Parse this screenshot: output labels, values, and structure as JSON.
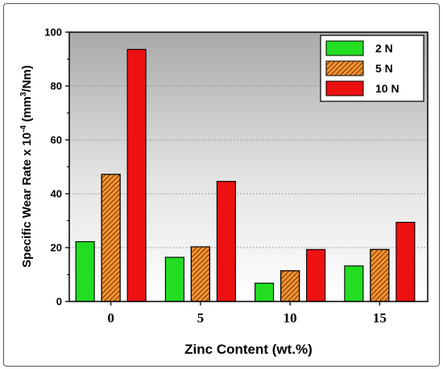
{
  "chart_data": {
    "type": "bar",
    "title": "",
    "xlabel": "Zinc Content (wt.%)",
    "ylabel": {
      "prefix": "Specific Wear Rate x 10",
      "exp1": "-4",
      "middle": " (mm",
      "exp2": "3",
      "suffix": "/Nm)"
    },
    "categories": [
      "0",
      "5",
      "10",
      "15"
    ],
    "series": [
      {
        "name": "2 N",
        "values": [
          22.2,
          16.4,
          6.8,
          13.2
        ],
        "color": "#22dd22",
        "hatch": "none"
      },
      {
        "name": "5 N",
        "values": [
          47.2,
          20.3,
          11.4,
          19.3
        ],
        "color": "#f59230",
        "hatch": "diagonal"
      },
      {
        "name": "10 N",
        "values": [
          93.6,
          44.6,
          19.3,
          29.4
        ],
        "color": "#ee1111",
        "hatch": "none"
      }
    ],
    "ylim": [
      0,
      100
    ],
    "yticks": [
      "0",
      "20",
      "40",
      "60",
      "80",
      "100"
    ],
    "grid": true,
    "legend_position": "top-right",
    "background": "gradient-gray"
  }
}
